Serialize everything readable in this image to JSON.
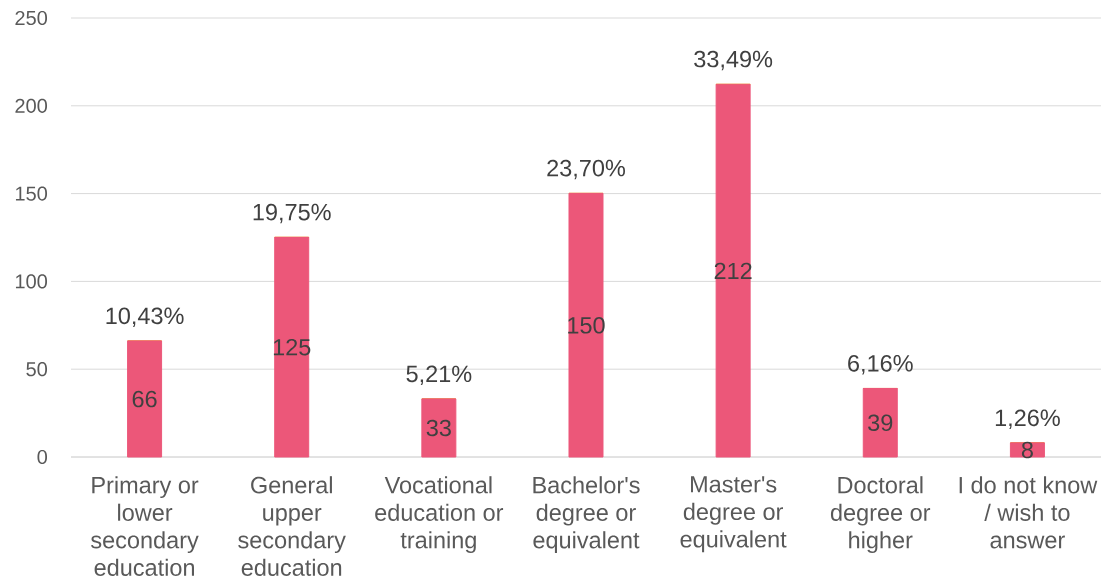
{
  "chart_data": {
    "type": "bar",
    "stacked": true,
    "categories": [
      "Primary or lower secondary education",
      "General upper secondary education",
      "Vocational education or training",
      "Bachelor's degree or equivalent",
      "Master's degree or equivalent",
      "Doctoral degree or higher",
      "I do not know / wish to answer"
    ],
    "series": [
      {
        "color": "#EC5779",
        "values": [
          66,
          125,
          33,
          150,
          212,
          39,
          8
        ],
        "value_labels": [
          "66",
          "125",
          "33",
          "150",
          "212",
          "39",
          "8"
        ]
      },
      {
        "color": "#ED7D31",
        "values": [
          0.1043,
          0.1975,
          0.0521,
          0.237,
          0.3349,
          0.0616,
          0.0126
        ],
        "value_labels": [
          "10,43%",
          "19,75%",
          "5,21%",
          "23,70%",
          "33,49%",
          "6,16%",
          "1,26%"
        ]
      }
    ],
    "ylim": [
      0,
      250
    ],
    "yticks": [
      0,
      50,
      100,
      150,
      200,
      250
    ],
    "grid": "y"
  }
}
